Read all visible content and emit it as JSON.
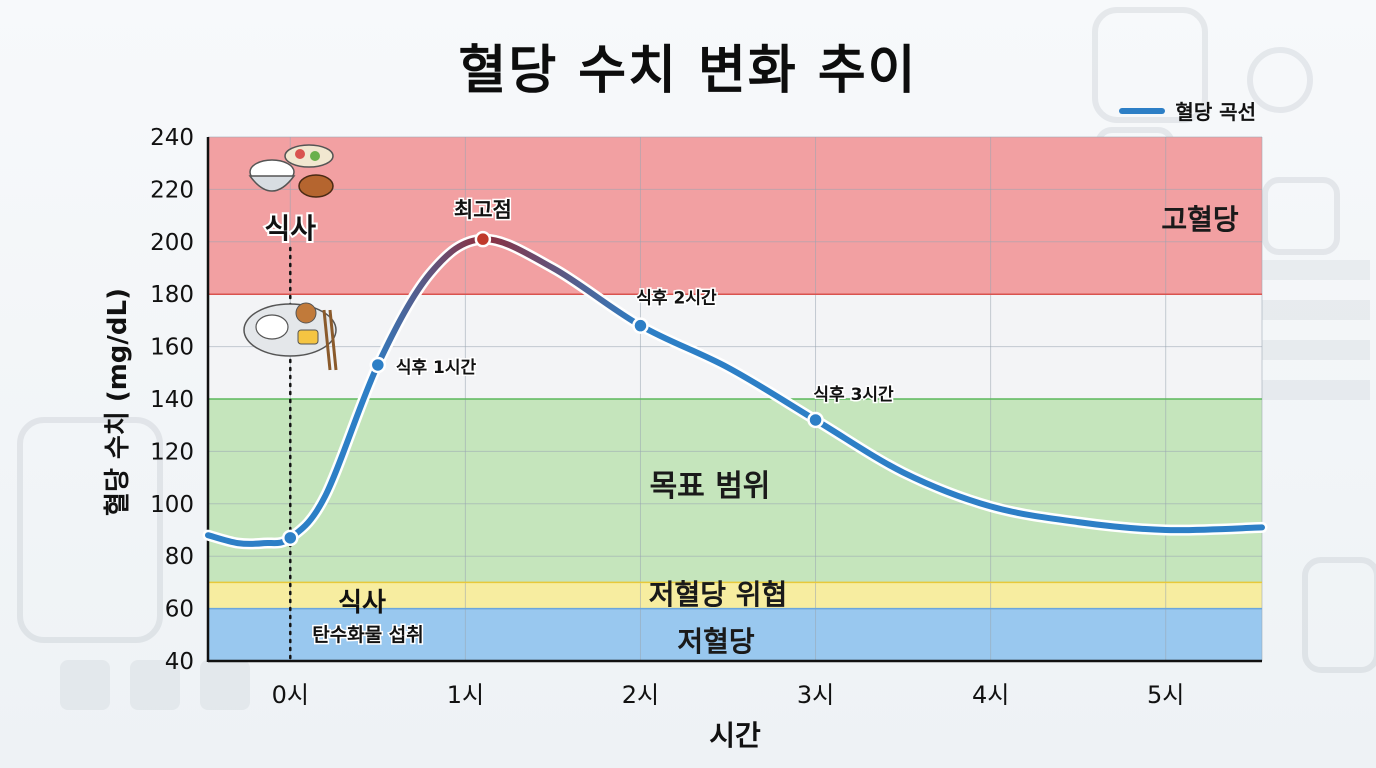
{
  "title": "혈당 수치 변화 추이",
  "legend": {
    "label": "혈당 곡선",
    "color": "#2d7fc6"
  },
  "chart_data": {
    "type": "line",
    "title": "혈당 수치 변화 추이",
    "xlabel": "시간",
    "ylabel": "혈당 수치 (mg/dL)",
    "xlim": [
      -0.47,
      5.55
    ],
    "ylim": [
      40,
      240
    ],
    "x_ticks": [
      0,
      1,
      2,
      3,
      4,
      5
    ],
    "x_tick_labels": [
      "0시",
      "1시",
      "2시",
      "3시",
      "4시",
      "5시"
    ],
    "y_ticks": [
      40,
      60,
      80,
      100,
      120,
      140,
      160,
      180,
      200,
      220,
      240
    ],
    "grid": true,
    "legend_position": "top-right",
    "series": [
      {
        "name": "혈당 곡선",
        "x": [
          -0.47,
          -0.3,
          -0.15,
          0,
          0.2,
          0.5,
          0.8,
          1.1,
          1.5,
          2.0,
          2.5,
          3.0,
          3.5,
          4.0,
          4.5,
          5.0,
          5.55
        ],
        "y": [
          88,
          85,
          85,
          87,
          103,
          153,
          188,
          201,
          190,
          168,
          152,
          132,
          112,
          99,
          93,
          90,
          91
        ]
      }
    ],
    "markers": [
      {
        "x": 0,
        "y": 87,
        "label": ""
      },
      {
        "x": 0.5,
        "y": 153,
        "label": "식후 1시간"
      },
      {
        "x": 1.1,
        "y": 201,
        "label": "최고점"
      },
      {
        "x": 2.0,
        "y": 168,
        "label": "식후 2시간"
      },
      {
        "x": 3.0,
        "y": 132,
        "label": "식후 3시간"
      }
    ],
    "bands": [
      {
        "from": 180,
        "to": 240,
        "label": "고혈당",
        "color": "#f2a0a2"
      },
      {
        "from": 140,
        "to": 180,
        "label": "",
        "color": "#f3f4f6"
      },
      {
        "from": 70,
        "to": 140,
        "label": "목표 범위",
        "color": "#c5e5bc"
      },
      {
        "from": 60,
        "to": 70,
        "label": "저혈당 위협",
        "color": "#f7eda0"
      },
      {
        "from": 40,
        "to": 60,
        "label": "저혈당",
        "color": "#99c8ef"
      }
    ],
    "band_lines": [
      {
        "y": 180,
        "color": "#d9534f"
      },
      {
        "y": 140,
        "color": "#5cb85c"
      },
      {
        "y": 70,
        "color": "#e8c93a"
      },
      {
        "y": 60,
        "color": "#6aa6dd"
      }
    ],
    "annotations": {
      "meal_top": "식사",
      "meal_bottom": "식사",
      "meal_bottom_sub": "탄수화물 섭취"
    }
  }
}
